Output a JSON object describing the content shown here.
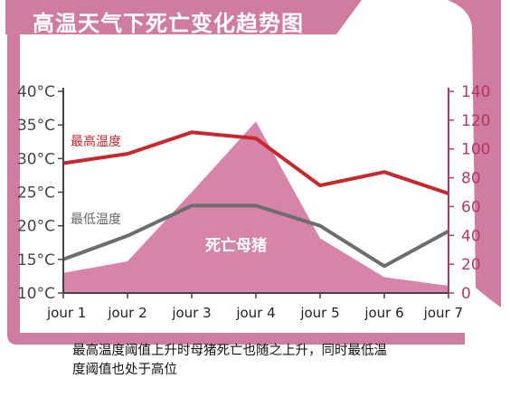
{
  "title": "高温天气下死亡变化趋势图",
  "caption_lines": [
    "最高温度阈值上升时母猪死亡也随之上升，同时最低温",
    "度阈值也处于高位"
  ],
  "colors": {
    "frame": "#d07ba0",
    "area": "#d883a9",
    "max_line": "#c8282d",
    "min_line": "#6d6d6d",
    "right_axis": "#b23a5e"
  },
  "chart_data": {
    "type": "line",
    "categories": [
      "jour 1",
      "jour 2",
      "jour 3",
      "jour 4",
      "jour 5",
      "jour 6",
      "jour 7"
    ],
    "left_axis": {
      "ticks": [
        "10°C",
        "15°C",
        "20°C",
        "25°C",
        "30°C",
        "35°C",
        "40°C"
      ],
      "ylim": [
        10,
        40
      ]
    },
    "right_axis": {
      "ticks": [
        "0",
        "20",
        "40",
        "60",
        "80",
        "100",
        "120",
        "140"
      ],
      "ylim": [
        0,
        140
      ]
    },
    "series": [
      {
        "name": "最高温度",
        "axis": "left",
        "kind": "line",
        "values": [
          29.3,
          30.7,
          33.9,
          33.0,
          26.0,
          28.0,
          24.8
        ]
      },
      {
        "name": "最低温度",
        "axis": "left",
        "kind": "line",
        "values": [
          15.0,
          18.5,
          23.0,
          23.0,
          20.0,
          14.0,
          19.2
        ]
      },
      {
        "name": "死亡母猪",
        "axis": "right",
        "kind": "area",
        "values": [
          14,
          22,
          70,
          119,
          38,
          11,
          5
        ]
      }
    ]
  }
}
